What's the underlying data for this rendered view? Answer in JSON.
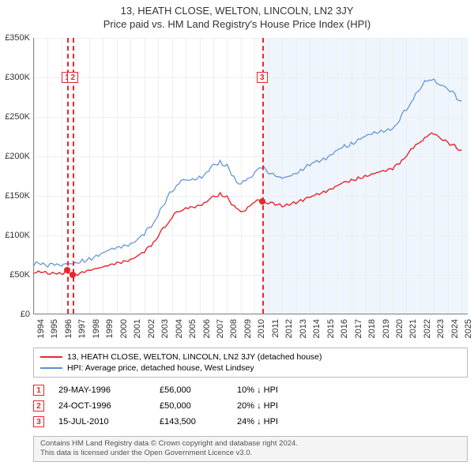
{
  "title": "13, HEATH CLOSE, WELTON, LINCOLN, LN2 3JY",
  "subtitle": "Price paid vs. HM Land Registry's House Price Index (HPI)",
  "chart": {
    "type": "line",
    "xlim": [
      1994,
      2025.5
    ],
    "ylim": [
      0,
      350000
    ],
    "ytick_step": 50000,
    "yticks": [
      "£0",
      "£50K",
      "£100K",
      "£150K",
      "£200K",
      "£250K",
      "£300K",
      "£350K"
    ],
    "xticks": [
      "1994",
      "1995",
      "1996",
      "1997",
      "1998",
      "1999",
      "2000",
      "2001",
      "2002",
      "2003",
      "2004",
      "2005",
      "2006",
      "2007",
      "2008",
      "2009",
      "2010",
      "2011",
      "2012",
      "2013",
      "2014",
      "2015",
      "2016",
      "2017",
      "2018",
      "2019",
      "2020",
      "2021",
      "2022",
      "2023",
      "2024",
      "2025"
    ],
    "grid_color": "#eeeeee",
    "axis_color": "#888888",
    "background_color": "#ffffff",
    "shade_from_year": 2010.54,
    "shade_color": "#eaf3fb",
    "series": [
      {
        "name": "hpi",
        "label": "HPI: Average price, detached house, West Lindsey",
        "color": "#5b8fd6",
        "width": 1.2,
        "data": [
          [
            1994.0,
            62000
          ],
          [
            1994.5,
            63000
          ],
          [
            1995.0,
            60000
          ],
          [
            1995.5,
            62000
          ],
          [
            1996.0,
            61000
          ],
          [
            1996.5,
            64000
          ],
          [
            1997.0,
            66000
          ],
          [
            1997.5,
            70000
          ],
          [
            1998.0,
            72000
          ],
          [
            1998.5,
            75000
          ],
          [
            1999.0,
            78000
          ],
          [
            1999.5,
            82000
          ],
          [
            2000.0,
            85000
          ],
          [
            2000.5,
            88000
          ],
          [
            2001.0,
            90000
          ],
          [
            2001.5,
            95000
          ],
          [
            2002.0,
            100000
          ],
          [
            2002.5,
            110000
          ],
          [
            2003.0,
            125000
          ],
          [
            2003.5,
            140000
          ],
          [
            2004.0,
            155000
          ],
          [
            2004.5,
            165000
          ],
          [
            2005.0,
            170000
          ],
          [
            2005.5,
            172000
          ],
          [
            2006.0,
            175000
          ],
          [
            2006.5,
            180000
          ],
          [
            2007.0,
            190000
          ],
          [
            2007.5,
            195000
          ],
          [
            2008.0,
            190000
          ],
          [
            2008.5,
            175000
          ],
          [
            2009.0,
            165000
          ],
          [
            2009.5,
            172000
          ],
          [
            2010.0,
            180000
          ],
          [
            2010.5,
            185000
          ],
          [
            2011.0,
            178000
          ],
          [
            2011.5,
            175000
          ],
          [
            2012.0,
            172000
          ],
          [
            2012.5,
            175000
          ],
          [
            2013.0,
            178000
          ],
          [
            2013.5,
            182000
          ],
          [
            2014.0,
            188000
          ],
          [
            2014.5,
            195000
          ],
          [
            2015.0,
            198000
          ],
          [
            2015.5,
            202000
          ],
          [
            2016.0,
            208000
          ],
          [
            2016.5,
            215000
          ],
          [
            2017.0,
            218000
          ],
          [
            2017.5,
            222000
          ],
          [
            2018.0,
            225000
          ],
          [
            2018.5,
            228000
          ],
          [
            2019.0,
            230000
          ],
          [
            2019.5,
            232000
          ],
          [
            2020.0,
            235000
          ],
          [
            2020.5,
            245000
          ],
          [
            2021.0,
            258000
          ],
          [
            2021.5,
            272000
          ],
          [
            2022.0,
            285000
          ],
          [
            2022.5,
            295000
          ],
          [
            2023.0,
            298000
          ],
          [
            2023.5,
            290000
          ],
          [
            2024.0,
            285000
          ],
          [
            2024.5,
            280000
          ],
          [
            2025.0,
            270000
          ]
        ]
      },
      {
        "name": "property",
        "label": "13, HEATH CLOSE, WELTON, LINCOLN, LN2 3JY (detached house)",
        "color": "#e8252d",
        "width": 1.4,
        "data": [
          [
            1994.0,
            52000
          ],
          [
            1994.5,
            53000
          ],
          [
            1995.0,
            51000
          ],
          [
            1995.5,
            52000
          ],
          [
            1996.0,
            51000
          ],
          [
            1996.41,
            56000
          ],
          [
            1996.5,
            54000
          ],
          [
            1996.82,
            50000
          ],
          [
            1997.0,
            51000
          ],
          [
            1997.5,
            54000
          ],
          [
            1998.0,
            56000
          ],
          [
            1998.5,
            58000
          ],
          [
            1999.0,
            60000
          ],
          [
            1999.5,
            63000
          ],
          [
            2000.0,
            66000
          ],
          [
            2000.5,
            68000
          ],
          [
            2001.0,
            70000
          ],
          [
            2001.5,
            74000
          ],
          [
            2002.0,
            78000
          ],
          [
            2002.5,
            86000
          ],
          [
            2003.0,
            98000
          ],
          [
            2003.5,
            110000
          ],
          [
            2004.0,
            122000
          ],
          [
            2004.5,
            130000
          ],
          [
            2005.0,
            135000
          ],
          [
            2005.5,
            136000
          ],
          [
            2006.0,
            138000
          ],
          [
            2006.5,
            142000
          ],
          [
            2007.0,
            150000
          ],
          [
            2007.5,
            154000
          ],
          [
            2008.0,
            150000
          ],
          [
            2008.5,
            138000
          ],
          [
            2009.0,
            130000
          ],
          [
            2009.5,
            136000
          ],
          [
            2010.0,
            142000
          ],
          [
            2010.54,
            143500
          ],
          [
            2011.0,
            140000
          ],
          [
            2011.5,
            138000
          ],
          [
            2012.0,
            136000
          ],
          [
            2012.5,
            138000
          ],
          [
            2013.0,
            140000
          ],
          [
            2013.5,
            143000
          ],
          [
            2014.0,
            148000
          ],
          [
            2014.5,
            153000
          ],
          [
            2015.0,
            156000
          ],
          [
            2015.5,
            159000
          ],
          [
            2016.0,
            163000
          ],
          [
            2016.5,
            168000
          ],
          [
            2017.0,
            171000
          ],
          [
            2017.5,
            174000
          ],
          [
            2018.0,
            176000
          ],
          [
            2018.5,
            178000
          ],
          [
            2019.0,
            180000
          ],
          [
            2019.5,
            181000
          ],
          [
            2020.0,
            183000
          ],
          [
            2020.5,
            190000
          ],
          [
            2021.0,
            200000
          ],
          [
            2021.5,
            210000
          ],
          [
            2022.0,
            218000
          ],
          [
            2022.5,
            225000
          ],
          [
            2023.0,
            228000
          ],
          [
            2023.5,
            222000
          ],
          [
            2024.0,
            218000
          ],
          [
            2024.5,
            215000
          ],
          [
            2025.0,
            208000
          ]
        ]
      }
    ],
    "event_markers": [
      {
        "id": "1",
        "year": 1996.41,
        "value": 56000,
        "vline_color": "#e8252d",
        "box_color": "#e8252d"
      },
      {
        "id": "2",
        "year": 1996.82,
        "value": 50000,
        "vline_color": "#e8252d",
        "box_color": "#e8252d"
      },
      {
        "id": "3",
        "year": 2010.54,
        "value": 143500,
        "vline_color": "#e8252d",
        "box_color": "#e8252d"
      }
    ]
  },
  "legend": {
    "items": [
      {
        "color": "#e8252d",
        "label": "13, HEATH CLOSE, WELTON, LINCOLN, LN2 3JY (detached house)"
      },
      {
        "color": "#5b8fd6",
        "label": "HPI: Average price, detached house, West Lindsey"
      }
    ]
  },
  "events": [
    {
      "badge": "1",
      "badge_color": "#e8252d",
      "date": "29-MAY-1996",
      "price": "£56,000",
      "diff": "10% ↓ HPI"
    },
    {
      "badge": "2",
      "badge_color": "#e8252d",
      "date": "24-OCT-1996",
      "price": "£50,000",
      "diff": "20% ↓ HPI"
    },
    {
      "badge": "3",
      "badge_color": "#e8252d",
      "date": "15-JUL-2010",
      "price": "£143,500",
      "diff": "24% ↓ HPI"
    }
  ],
  "footer": {
    "line1": "Contains HM Land Registry data © Crown copyright and database right 2024.",
    "line2": "This data is licensed under the Open Government Licence v3.0."
  }
}
